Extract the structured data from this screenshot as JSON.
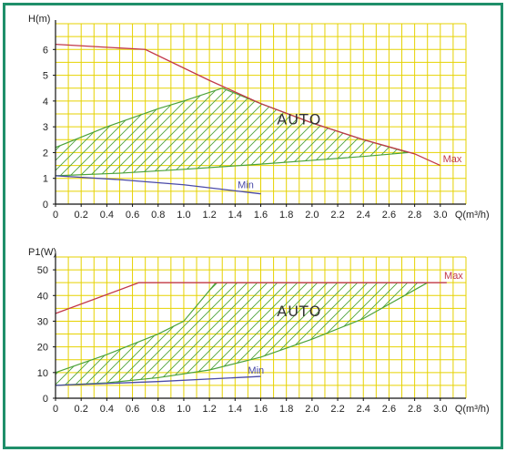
{
  "colors": {
    "frame": "#1f8f6a",
    "grid": "#e6d200",
    "max": "#c2384a",
    "min": "#4a4aa8",
    "auto": "#4aa23a"
  },
  "chart_data": [
    {
      "type": "line",
      "ylabel": "H(m)",
      "xlabel": "Q(m³/h)",
      "xlim": [
        0,
        3.2
      ],
      "ylim": [
        0,
        7
      ],
      "x_ticks": [
        "0",
        "0.2",
        "0.4",
        "0.6",
        "0.8",
        "1.0",
        "1.2",
        "1.4",
        "1.6",
        "1.8",
        "2.0",
        "2.2",
        "2.4",
        "2.6",
        "2.8",
        "3.0"
      ],
      "y_ticks": [
        "0",
        "1",
        "2",
        "3",
        "4",
        "5",
        "6"
      ],
      "grid": true,
      "annotation": "AUTO",
      "series": [
        {
          "name": "Max",
          "points": [
            [
              0,
              6.2
            ],
            [
              0.7,
              6.0
            ],
            [
              1.2,
              4.8
            ],
            [
              1.6,
              3.9
            ],
            [
              2.0,
              3.15
            ],
            [
              2.4,
              2.5
            ],
            [
              2.8,
              1.95
            ],
            [
              3.0,
              1.5
            ]
          ]
        },
        {
          "name": "Min",
          "points": [
            [
              0,
              1.1
            ],
            [
              0.5,
              0.95
            ],
            [
              1.0,
              0.75
            ],
            [
              1.6,
              0.4
            ]
          ]
        }
      ],
      "auto_region": {
        "upper": [
          [
            0,
            2.2
          ],
          [
            0.4,
            3.0
          ],
          [
            0.8,
            3.7
          ],
          [
            1.0,
            4.0
          ],
          [
            1.3,
            4.5
          ],
          [
            1.6,
            3.9
          ],
          [
            2.0,
            3.15
          ],
          [
            2.4,
            2.5
          ],
          [
            2.75,
            2.0
          ]
        ],
        "lower": [
          [
            0,
            1.1
          ],
          [
            0.5,
            1.2
          ],
          [
            1.0,
            1.35
          ],
          [
            1.6,
            1.55
          ],
          [
            2.0,
            1.7
          ],
          [
            2.4,
            1.85
          ],
          [
            2.75,
            2.0
          ]
        ]
      }
    },
    {
      "type": "line",
      "ylabel": "P1(W)",
      "xlabel": "Q(m³/h)",
      "xlim": [
        0,
        3.2
      ],
      "ylim": [
        0,
        55
      ],
      "x_ticks": [
        "0",
        "0.2",
        "0.4",
        "0.6",
        "0.8",
        "1.0",
        "1.2",
        "1.4",
        "1.6",
        "1.8",
        "2.0",
        "2.2",
        "2.4",
        "2.6",
        "2.8",
        "3.0"
      ],
      "y_ticks": [
        "0",
        "10",
        "20",
        "30",
        "40",
        "50"
      ],
      "grid": true,
      "annotation": "AUTO",
      "series": [
        {
          "name": "Max",
          "points": [
            [
              0,
              33
            ],
            [
              0.65,
              45
            ],
            [
              3.05,
              45
            ]
          ]
        },
        {
          "name": "Min",
          "points": [
            [
              0,
              5
            ],
            [
              0.8,
              6.5
            ],
            [
              1.6,
              8.5
            ]
          ]
        }
      ],
      "auto_region": {
        "upper": [
          [
            0,
            10
          ],
          [
            0.4,
            17
          ],
          [
            0.8,
            25
          ],
          [
            1.0,
            30
          ],
          [
            1.25,
            45
          ],
          [
            2.9,
            45
          ]
        ],
        "lower": [
          [
            0,
            5
          ],
          [
            0.4,
            6
          ],
          [
            0.8,
            8
          ],
          [
            1.2,
            11
          ],
          [
            1.6,
            16
          ],
          [
            2.0,
            23
          ],
          [
            2.4,
            31
          ],
          [
            2.9,
            45
          ]
        ]
      }
    }
  ]
}
